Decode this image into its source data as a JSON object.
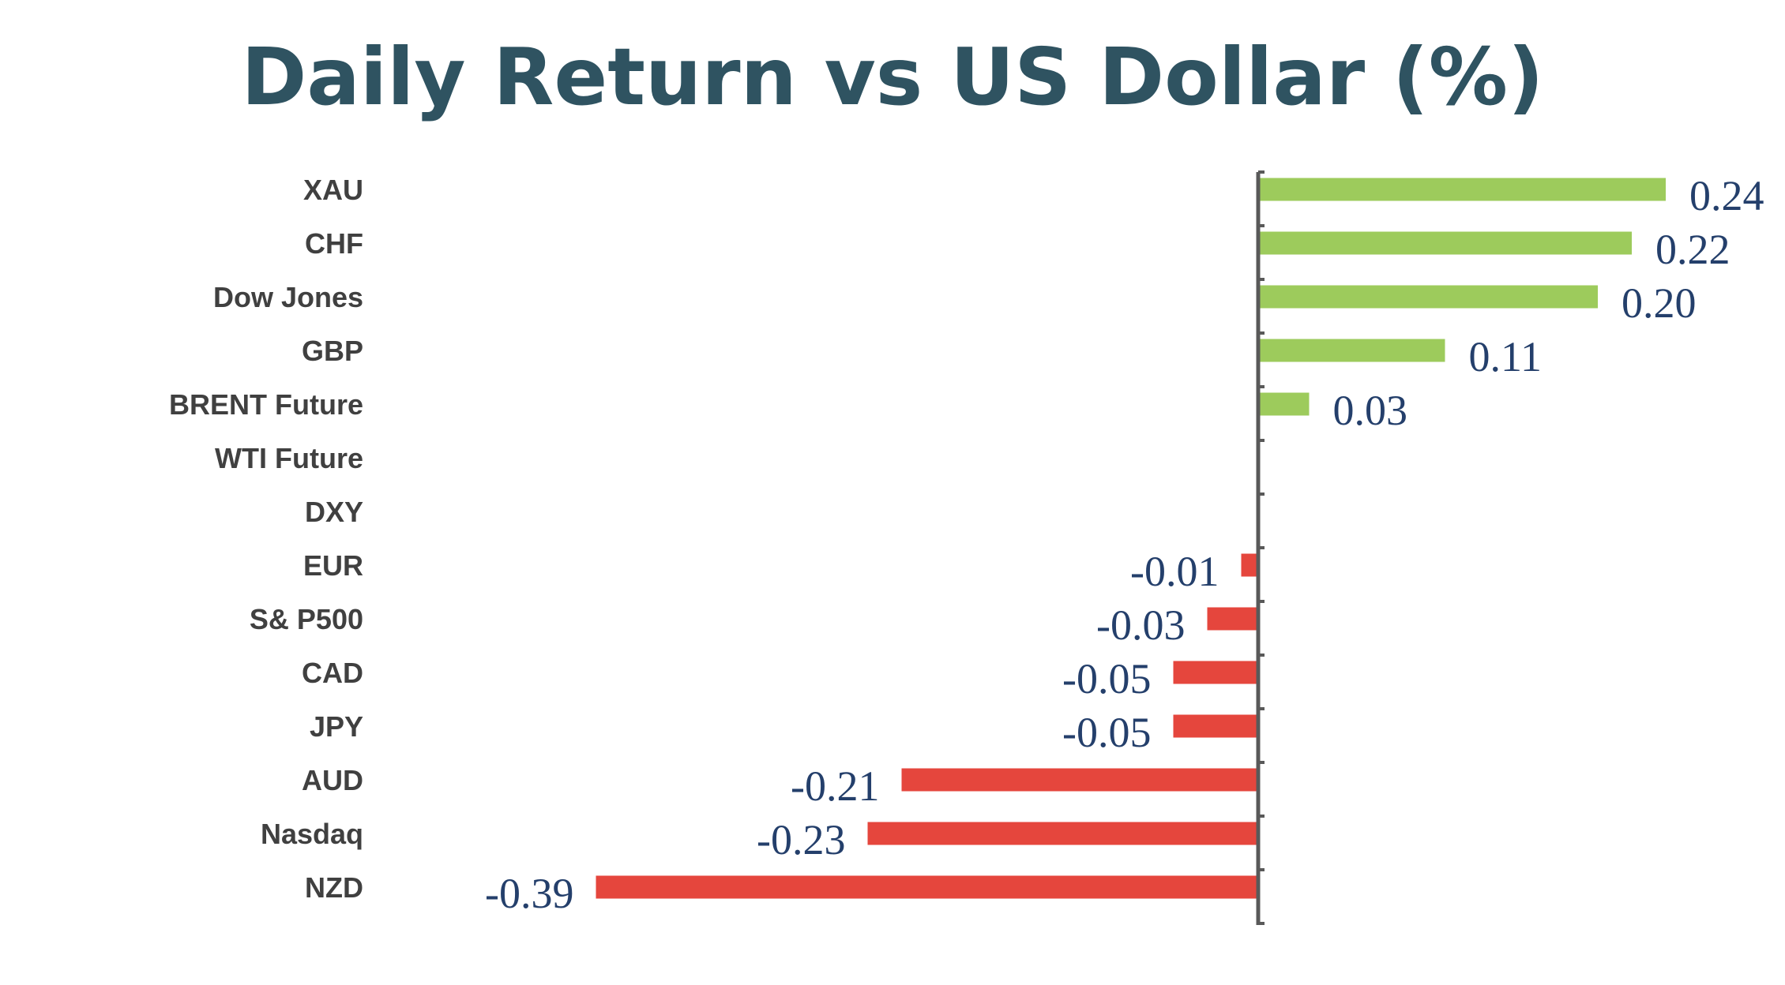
{
  "colors": {
    "title": "#2f5361",
    "positive": "#9dcb5c",
    "negative": "#e5463d",
    "axis": "#595959",
    "category_text": "#404040",
    "value_text": "#243f6b"
  },
  "chart_data": {
    "type": "bar",
    "orientation": "horizontal",
    "title": "Daily Return vs US Dollar (%)",
    "xlabel": "",
    "ylabel": "",
    "xlim": [
      -0.39,
      0.24
    ],
    "grid": false,
    "legend": "none",
    "categories": [
      "XAU",
      "CHF",
      "Dow Jones",
      "GBP",
      "BRENT Future",
      "WTI Future",
      "DXY",
      "EUR",
      "S& P500",
      "CAD",
      "JPY",
      "AUD",
      "Nasdaq",
      "NZD"
    ],
    "values": [
      0.24,
      0.22,
      0.2,
      0.11,
      0.03,
      0.0,
      0.0,
      -0.01,
      -0.03,
      -0.05,
      -0.05,
      -0.21,
      -0.23,
      -0.39
    ],
    "value_labels": [
      "0.24",
      "0.22",
      "0.20",
      "0.11",
      "0.03",
      "",
      "",
      "-0.01",
      "-0.03",
      "-0.05",
      "-0.05",
      "-0.21",
      "-0.23",
      "-0.39"
    ]
  }
}
